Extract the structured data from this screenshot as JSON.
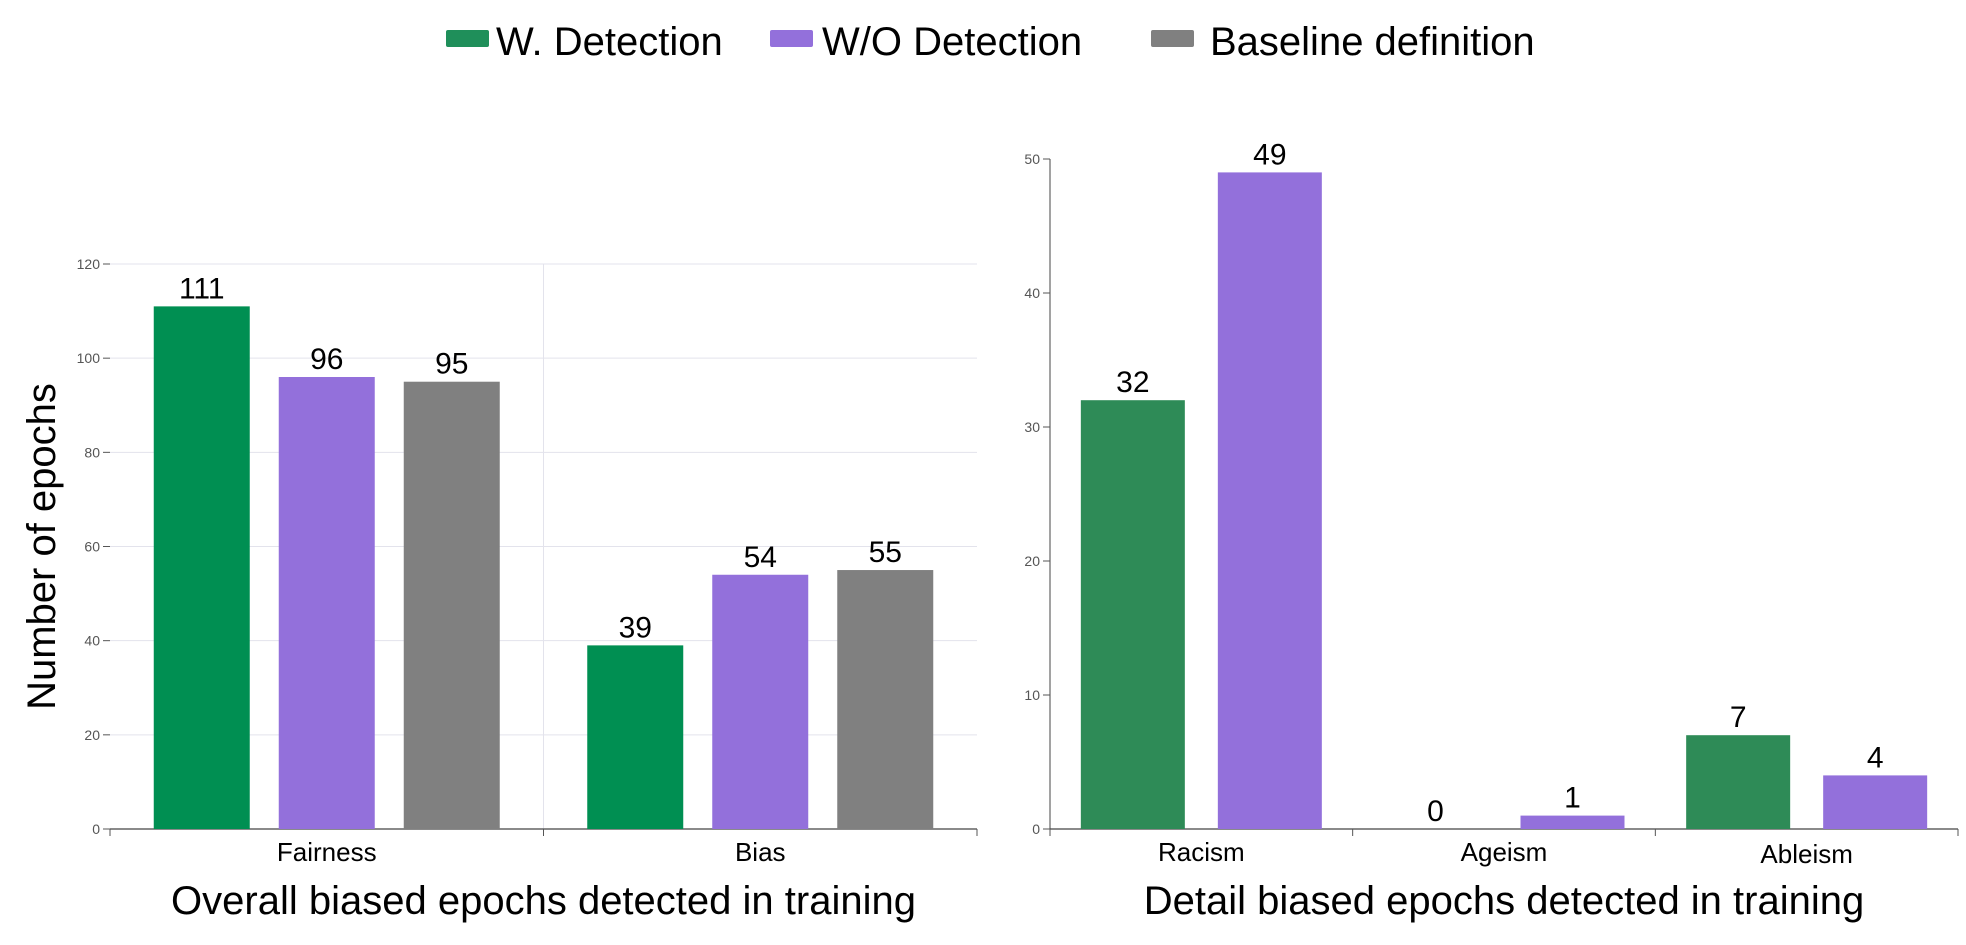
{
  "legend": [
    {
      "name": "W. Detection",
      "color": "#1f8f5a"
    },
    {
      "name": "W/O Detection",
      "color": "#9370db"
    },
    {
      "name": "Baseline definition",
      "color": "#808080"
    }
  ],
  "chart_data": [
    {
      "type": "bar",
      "title": "",
      "xlabel": "Overall biased epochs detected in training",
      "ylabel": "Number of epochs",
      "ylim": [
        0,
        120
      ],
      "yticks": [
        0,
        20,
        40,
        60,
        80,
        100,
        120
      ],
      "grid": true,
      "categories": [
        "Fairness",
        "Bias"
      ],
      "series": [
        {
          "name": "W. Detection",
          "color": "#008f52",
          "values": [
            111,
            39
          ]
        },
        {
          "name": "W/O Detection",
          "color": "#9370db",
          "values": [
            96,
            54
          ]
        },
        {
          "name": "Baseline definition",
          "color": "#808080",
          "values": [
            95,
            55
          ]
        }
      ]
    },
    {
      "type": "bar",
      "title": "",
      "xlabel": "Detail biased epochs detected in training",
      "ylabel": "",
      "ylim": [
        0,
        50
      ],
      "yticks": [
        0,
        10,
        20,
        30,
        40,
        50
      ],
      "grid": false,
      "categories": [
        "Racism",
        "Ageism",
        "Ableism"
      ],
      "series": [
        {
          "name": "W. Detection",
          "color": "#2e8b57",
          "values": [
            32,
            0,
            7
          ]
        },
        {
          "name": "W/O Detection",
          "color": "#9370db",
          "values": [
            49,
            1,
            4
          ]
        }
      ]
    }
  ]
}
